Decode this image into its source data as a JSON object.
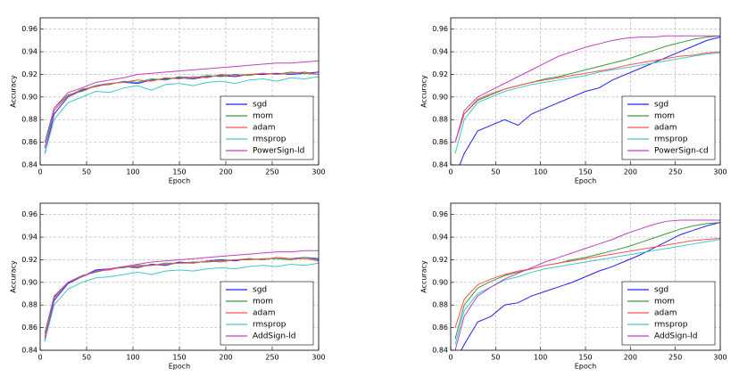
{
  "chart_data": [
    {
      "type": "line",
      "xlabel": "Epoch",
      "ylabel": "Accuracy",
      "x": [
        5,
        15,
        30,
        45,
        60,
        75,
        90,
        105,
        120,
        135,
        150,
        165,
        180,
        195,
        210,
        225,
        240,
        255,
        270,
        285,
        300
      ],
      "xlim": [
        0,
        300
      ],
      "xticks": [
        0,
        50,
        100,
        150,
        200,
        250,
        300
      ],
      "ylim": [
        0.84,
        0.97
      ],
      "yticks": [
        0.84,
        0.86,
        0.88,
        {
          "value": 0.9,
          "label": "0.90"
        },
        0.92,
        0.94,
        0.96
      ],
      "grid": true,
      "legend": "lower right",
      "series": [
        {
          "name": "sgd",
          "color": "#2020ff",
          "values": [
            0.85,
            0.885,
            0.9,
            0.906,
            0.91,
            0.912,
            0.913,
            0.912,
            0.915,
            0.916,
            0.917,
            0.916,
            0.918,
            0.919,
            0.918,
            0.92,
            0.92,
            0.921,
            0.92,
            0.921,
            0.922
          ]
        },
        {
          "name": "mom",
          "color": "#3a9a3a",
          "values": [
            0.86,
            0.89,
            0.902,
            0.905,
            0.91,
            0.911,
            0.914,
            0.913,
            0.916,
            0.915,
            0.918,
            0.917,
            0.919,
            0.918,
            0.92,
            0.919,
            0.921,
            0.92,
            0.922,
            0.921,
            0.92
          ]
        },
        {
          "name": "adam",
          "color": "#ff5050",
          "values": [
            0.855,
            0.888,
            0.901,
            0.907,
            0.909,
            0.912,
            0.913,
            0.915,
            0.914,
            0.917,
            0.916,
            0.918,
            0.917,
            0.92,
            0.919,
            0.92,
            0.921,
            0.92,
            0.921,
            0.922,
            0.92
          ]
        },
        {
          "name": "rmsprop",
          "color": "#40c8c8",
          "values": [
            0.85,
            0.88,
            0.895,
            0.9,
            0.905,
            0.904,
            0.908,
            0.91,
            0.906,
            0.911,
            0.912,
            0.91,
            0.913,
            0.914,
            0.912,
            0.915,
            0.916,
            0.914,
            0.917,
            0.916,
            0.918
          ]
        },
        {
          "name": "PowerSign-ld",
          "color": "#c040c8",
          "values": [
            0.855,
            0.89,
            0.904,
            0.908,
            0.913,
            0.915,
            0.917,
            0.92,
            0.921,
            0.922,
            0.923,
            0.924,
            0.925,
            0.926,
            0.927,
            0.928,
            0.929,
            0.93,
            0.93,
            0.931,
            0.932
          ]
        }
      ]
    },
    {
      "type": "line",
      "xlabel": "Epoch",
      "ylabel": "Accuracy",
      "x": [
        5,
        15,
        30,
        45,
        60,
        75,
        90,
        105,
        120,
        135,
        150,
        165,
        180,
        195,
        210,
        225,
        240,
        255,
        270,
        285,
        300
      ],
      "xlim": [
        0,
        300
      ],
      "xticks": [
        0,
        50,
        100,
        150,
        200,
        250,
        300
      ],
      "ylim": [
        0.84,
        0.97
      ],
      "yticks": [
        0.84,
        0.86,
        0.88,
        {
          "value": 0.9,
          "label": "0.90"
        },
        0.92,
        0.94,
        0.96
      ],
      "grid": true,
      "legend": "lower right",
      "series": [
        {
          "name": "sgd",
          "color": "#2020ff",
          "values": [
            0.83,
            0.85,
            0.87,
            0.875,
            0.88,
            0.875,
            0.885,
            0.89,
            0.895,
            0.9,
            0.905,
            0.908,
            0.915,
            0.92,
            0.925,
            0.93,
            0.935,
            0.94,
            0.945,
            0.95,
            0.953
          ]
        },
        {
          "name": "mom",
          "color": "#3a9a3a",
          "values": [
            0.86,
            0.885,
            0.897,
            0.902,
            0.907,
            0.91,
            0.913,
            0.916,
            0.918,
            0.921,
            0.924,
            0.927,
            0.93,
            0.933,
            0.937,
            0.941,
            0.945,
            0.948,
            0.951,
            0.953,
            0.954
          ]
        },
        {
          "name": "adam",
          "color": "#ff5050",
          "values": [
            0.86,
            0.885,
            0.898,
            0.903,
            0.907,
            0.91,
            0.913,
            0.915,
            0.917,
            0.919,
            0.921,
            0.923,
            0.925,
            0.928,
            0.93,
            0.932,
            0.934,
            0.936,
            0.937,
            0.939,
            0.94
          ]
        },
        {
          "name": "rmsprop",
          "color": "#40c8c8",
          "values": [
            0.85,
            0.88,
            0.895,
            0.9,
            0.905,
            0.908,
            0.911,
            0.913,
            0.915,
            0.917,
            0.919,
            0.922,
            0.924,
            0.926,
            0.928,
            0.93,
            0.932,
            0.934,
            0.936,
            0.938,
            0.939
          ]
        },
        {
          "name": "PowerSign-cd",
          "color": "#c040c8",
          "values": [
            0.86,
            0.888,
            0.9,
            0.906,
            0.912,
            0.918,
            0.924,
            0.93,
            0.936,
            0.94,
            0.944,
            0.947,
            0.95,
            0.952,
            0.953,
            0.953,
            0.954,
            0.954,
            0.954,
            0.954,
            0.954
          ]
        }
      ]
    },
    {
      "type": "line",
      "xlabel": "Epoch",
      "ylabel": "Accuracy",
      "x": [
        5,
        15,
        30,
        45,
        60,
        75,
        90,
        105,
        120,
        135,
        150,
        165,
        180,
        195,
        210,
        225,
        240,
        255,
        270,
        285,
        300
      ],
      "xlim": [
        0,
        300
      ],
      "xticks": [
        0,
        50,
        100,
        150,
        200,
        250,
        300
      ],
      "ylim": [
        0.84,
        0.97
      ],
      "yticks": [
        0.84,
        0.86,
        0.88,
        {
          "value": 0.9,
          "label": "0.90"
        },
        0.92,
        0.94,
        0.96
      ],
      "grid": true,
      "legend": "lower right",
      "series": [
        {
          "name": "sgd",
          "color": "#2020ff",
          "values": [
            0.848,
            0.884,
            0.899,
            0.905,
            0.911,
            0.912,
            0.914,
            0.913,
            0.916,
            0.915,
            0.918,
            0.917,
            0.919,
            0.92,
            0.919,
            0.921,
            0.92,
            0.922,
            0.921,
            0.922,
            0.921
          ]
        },
        {
          "name": "mom",
          "color": "#3a9a3a",
          "values": [
            0.855,
            0.888,
            0.9,
            0.906,
            0.909,
            0.912,
            0.913,
            0.915,
            0.915,
            0.917,
            0.917,
            0.918,
            0.918,
            0.919,
            0.92,
            0.92,
            0.921,
            0.921,
            0.92,
            0.922,
            0.92
          ]
        },
        {
          "name": "adam",
          "color": "#ff5050",
          "values": [
            0.852,
            0.887,
            0.9,
            0.905,
            0.91,
            0.911,
            0.914,
            0.914,
            0.915,
            0.916,
            0.917,
            0.917,
            0.919,
            0.918,
            0.92,
            0.921,
            0.92,
            0.922,
            0.921,
            0.921,
            0.919
          ]
        },
        {
          "name": "rmsprop",
          "color": "#40c8c8",
          "values": [
            0.848,
            0.88,
            0.894,
            0.9,
            0.904,
            0.905,
            0.907,
            0.909,
            0.907,
            0.91,
            0.911,
            0.91,
            0.912,
            0.913,
            0.912,
            0.914,
            0.915,
            0.914,
            0.916,
            0.915,
            0.917
          ]
        },
        {
          "name": "AddSign-ld",
          "color": "#c040c8",
          "values": [
            0.85,
            0.886,
            0.9,
            0.905,
            0.91,
            0.912,
            0.914,
            0.916,
            0.918,
            0.919,
            0.92,
            0.921,
            0.922,
            0.923,
            0.924,
            0.925,
            0.926,
            0.927,
            0.927,
            0.928,
            0.928
          ]
        }
      ]
    },
    {
      "type": "line",
      "xlabel": "Epoch",
      "ylabel": "Accuracy",
      "x": [
        5,
        15,
        30,
        45,
        60,
        75,
        90,
        105,
        120,
        135,
        150,
        165,
        180,
        195,
        210,
        225,
        240,
        255,
        270,
        285,
        300
      ],
      "xlim": [
        0,
        300
      ],
      "xticks": [
        0,
        50,
        100,
        150,
        200,
        250,
        300
      ],
      "ylim": [
        0.84,
        0.97
      ],
      "yticks": [
        0.84,
        0.86,
        0.88,
        {
          "value": 0.9,
          "label": "0.90"
        },
        0.92,
        0.94,
        0.96
      ],
      "grid": true,
      "legend": "lower right",
      "series": [
        {
          "name": "sgd",
          "color": "#2020ff",
          "values": [
            0.83,
            0.845,
            0.865,
            0.87,
            0.88,
            0.882,
            0.888,
            0.892,
            0.896,
            0.9,
            0.905,
            0.91,
            0.914,
            0.919,
            0.924,
            0.93,
            0.936,
            0.942,
            0.946,
            0.95,
            0.953
          ]
        },
        {
          "name": "mom",
          "color": "#3a9a3a",
          "values": [
            0.85,
            0.88,
            0.895,
            0.901,
            0.906,
            0.909,
            0.912,
            0.915,
            0.917,
            0.92,
            0.922,
            0.925,
            0.928,
            0.931,
            0.935,
            0.939,
            0.943,
            0.947,
            0.95,
            0.952,
            0.953
          ]
        },
        {
          "name": "adam",
          "color": "#ff5050",
          "values": [
            0.86,
            0.885,
            0.898,
            0.903,
            0.907,
            0.91,
            0.912,
            0.915,
            0.917,
            0.919,
            0.921,
            0.923,
            0.925,
            0.927,
            0.929,
            0.931,
            0.933,
            0.935,
            0.937,
            0.938,
            0.939
          ]
        },
        {
          "name": "rmsprop",
          "color": "#40c8c8",
          "values": [
            0.845,
            0.875,
            0.89,
            0.896,
            0.902,
            0.905,
            0.909,
            0.912,
            0.914,
            0.916,
            0.918,
            0.92,
            0.922,
            0.924,
            0.926,
            0.928,
            0.93,
            0.932,
            0.934,
            0.936,
            0.938
          ]
        },
        {
          "name": "AddSign-ld",
          "color": "#c040c8",
          "values": [
            0.84,
            0.87,
            0.888,
            0.896,
            0.903,
            0.908,
            0.913,
            0.918,
            0.922,
            0.926,
            0.93,
            0.934,
            0.938,
            0.943,
            0.947,
            0.951,
            0.954,
            0.955,
            0.955,
            0.955,
            0.955
          ]
        }
      ]
    }
  ]
}
